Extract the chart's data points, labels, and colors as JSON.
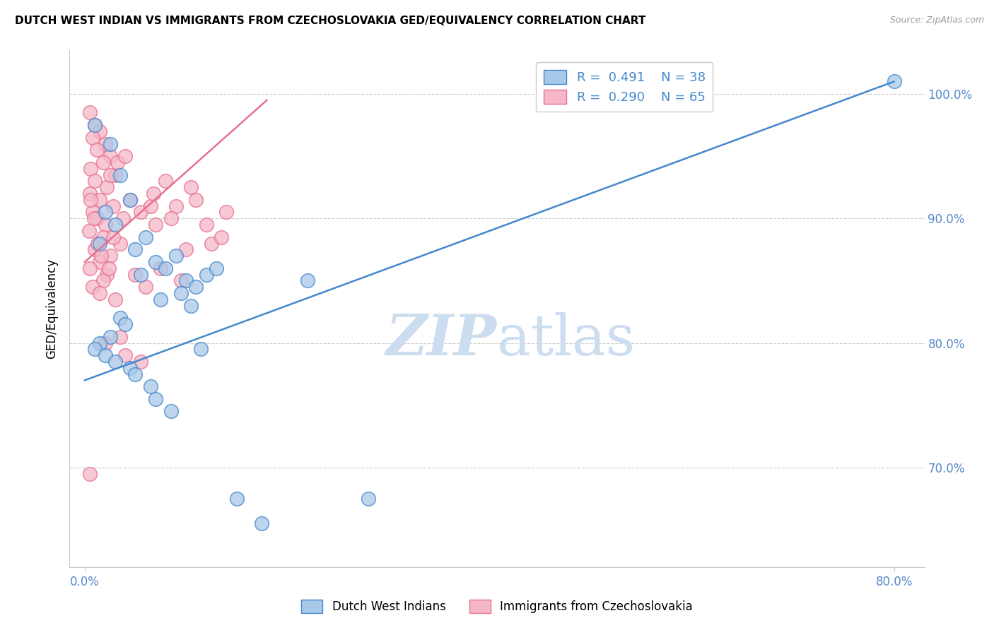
{
  "title": "DUTCH WEST INDIAN VS IMMIGRANTS FROM CZECHOSLOVAKIA GED/EQUIVALENCY CORRELATION CHART",
  "source": "Source: ZipAtlas.com",
  "ylabel": "GED/Equivalency",
  "ytick_vals": [
    70.0,
    80.0,
    90.0,
    100.0
  ],
  "ytick_labels": [
    "70.0%",
    "80.0%",
    "90.0%",
    "100.0%"
  ],
  "watermark_zip": "ZIP",
  "watermark_atlas": "atlas",
  "blue_color": "#a8c8e8",
  "pink_color": "#f4b8c8",
  "blue_edge_color": "#4488cc",
  "pink_edge_color": "#e87090",
  "blue_line_color": "#4488cc",
  "pink_line_color": "#e87090",
  "blue_scatter": [
    [
      1.0,
      97.5
    ],
    [
      2.5,
      96.0
    ],
    [
      3.5,
      93.5
    ],
    [
      2.0,
      90.5
    ],
    [
      1.5,
      88.0
    ],
    [
      4.5,
      91.5
    ],
    [
      3.0,
      89.5
    ],
    [
      5.0,
      87.5
    ],
    [
      6.0,
      88.5
    ],
    [
      7.0,
      86.5
    ],
    [
      5.5,
      85.5
    ],
    [
      8.0,
      86.0
    ],
    [
      9.0,
      87.0
    ],
    [
      10.0,
      85.0
    ],
    [
      11.0,
      84.5
    ],
    [
      7.5,
      83.5
    ],
    [
      9.5,
      84.0
    ],
    [
      12.0,
      85.5
    ],
    [
      10.5,
      83.0
    ],
    [
      13.0,
      86.0
    ],
    [
      3.5,
      82.0
    ],
    [
      4.0,
      81.5
    ],
    [
      2.5,
      80.5
    ],
    [
      1.5,
      80.0
    ],
    [
      1.0,
      79.5
    ],
    [
      2.0,
      79.0
    ],
    [
      3.0,
      78.5
    ],
    [
      4.5,
      78.0
    ],
    [
      5.0,
      77.5
    ],
    [
      6.5,
      76.5
    ],
    [
      7.0,
      75.5
    ],
    [
      8.5,
      74.5
    ],
    [
      22.0,
      85.0
    ],
    [
      11.5,
      79.5
    ],
    [
      15.0,
      67.5
    ],
    [
      17.5,
      65.5
    ],
    [
      28.0,
      67.5
    ],
    [
      80.0,
      101.0
    ]
  ],
  "pink_scatter": [
    [
      0.5,
      98.5
    ],
    [
      1.0,
      97.5
    ],
    [
      1.5,
      97.0
    ],
    [
      0.8,
      96.5
    ],
    [
      2.0,
      96.0
    ],
    [
      1.2,
      95.5
    ],
    [
      2.5,
      95.0
    ],
    [
      1.8,
      94.5
    ],
    [
      0.6,
      94.0
    ],
    [
      3.0,
      93.5
    ],
    [
      1.0,
      93.0
    ],
    [
      2.2,
      92.5
    ],
    [
      0.5,
      92.0
    ],
    [
      1.5,
      91.5
    ],
    [
      2.8,
      91.0
    ],
    [
      0.8,
      90.5
    ],
    [
      1.2,
      90.0
    ],
    [
      2.0,
      89.5
    ],
    [
      0.4,
      89.0
    ],
    [
      1.8,
      88.5
    ],
    [
      3.5,
      88.0
    ],
    [
      1.0,
      87.5
    ],
    [
      2.5,
      87.0
    ],
    [
      1.5,
      86.5
    ],
    [
      0.5,
      86.0
    ],
    [
      2.2,
      85.5
    ],
    [
      1.8,
      85.0
    ],
    [
      0.8,
      84.5
    ],
    [
      1.5,
      84.0
    ],
    [
      3.0,
      83.5
    ],
    [
      2.8,
      88.5
    ],
    [
      4.5,
      91.5
    ],
    [
      5.5,
      90.5
    ],
    [
      6.5,
      91.0
    ],
    [
      8.0,
      93.0
    ],
    [
      7.0,
      89.5
    ],
    [
      9.0,
      91.0
    ],
    [
      10.5,
      92.5
    ],
    [
      12.0,
      89.5
    ],
    [
      5.0,
      85.5
    ],
    [
      6.0,
      84.5
    ],
    [
      7.5,
      86.0
    ],
    [
      10.0,
      87.5
    ],
    [
      12.5,
      88.0
    ],
    [
      3.5,
      80.5
    ],
    [
      4.0,
      79.0
    ],
    [
      2.0,
      80.0
    ],
    [
      5.5,
      78.5
    ],
    [
      2.5,
      93.5
    ],
    [
      3.2,
      94.5
    ],
    [
      4.0,
      95.0
    ],
    [
      0.6,
      91.5
    ],
    [
      0.9,
      90.0
    ],
    [
      1.3,
      88.0
    ],
    [
      1.6,
      87.0
    ],
    [
      2.4,
      86.0
    ],
    [
      3.8,
      90.0
    ],
    [
      6.8,
      92.0
    ],
    [
      8.5,
      90.0
    ],
    [
      11.0,
      91.5
    ],
    [
      14.0,
      90.5
    ],
    [
      9.5,
      85.0
    ],
    [
      13.5,
      88.5
    ],
    [
      0.5,
      69.5
    ]
  ],
  "xmin": -1.5,
  "xmax": 83.0,
  "ymin": 62.0,
  "ymax": 103.5,
  "grid_yticks": [
    70.0,
    80.0,
    90.0,
    100.0
  ],
  "xtick_left_val": 0.0,
  "xtick_right_val": 80.0,
  "xtick_left_label": "0.0%",
  "xtick_right_label": "80.0%",
  "blue_line_x": [
    0.0,
    80.0
  ],
  "blue_line_y": [
    77.0,
    101.0
  ],
  "pink_line_x": [
    0.0,
    18.0
  ],
  "pink_line_y": [
    86.5,
    99.5
  ]
}
